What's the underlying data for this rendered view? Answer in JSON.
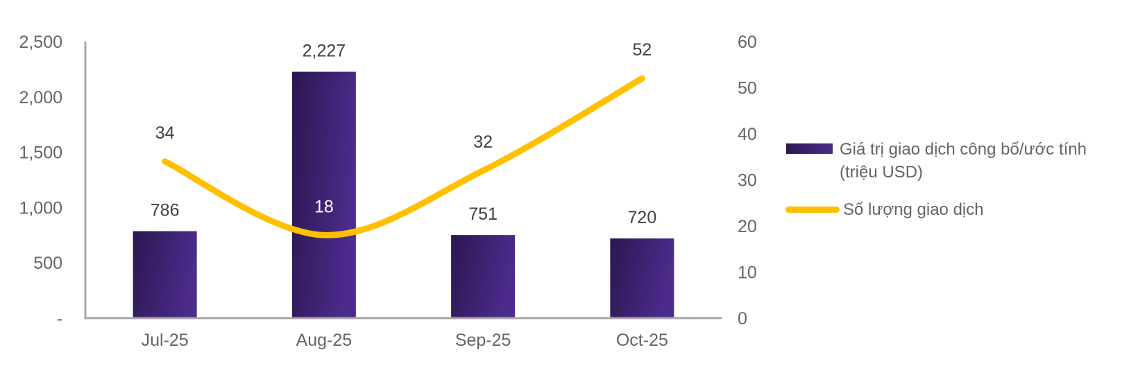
{
  "chart_data": {
    "type": "combo",
    "subtype": "bar+line",
    "categories": [
      "Jul-25",
      "Aug-25",
      "Sep-25",
      "Oct-25"
    ],
    "series": [
      {
        "name": "Giá trị giao dịch công bố/ước tính (triệu USD)",
        "legend_lines": [
          "Giá trị giao dịch công bố/ước tính",
          "(triệu USD)"
        ],
        "type": "bar",
        "axis": "left",
        "values": [
          786,
          2227,
          751,
          720
        ],
        "value_labels": [
          "786",
          "2,227",
          "751",
          "720"
        ],
        "color_start": "#2b1750",
        "color_end": "#4c2b8c"
      },
      {
        "name": "Số lượng giao dịch",
        "type": "line",
        "axis": "right",
        "values": [
          34,
          18,
          32,
          52
        ],
        "value_labels": [
          "34",
          "18",
          "32",
          "52"
        ],
        "label_colors": [
          "#404040",
          "#ffffff",
          "#404040",
          "#404040"
        ],
        "color": "#FFC000"
      }
    ],
    "left_axis": {
      "min": 0,
      "max": 2500,
      "tick_values": [
        0,
        500,
        1000,
        1500,
        2000,
        2500
      ],
      "tick_labels": [
        "-",
        "500",
        "1,000",
        "1,500",
        "2,000",
        "2,500"
      ]
    },
    "right_axis": {
      "min": 0,
      "max": 60,
      "tick_values": [
        0,
        10,
        20,
        30,
        40,
        50,
        60
      ],
      "tick_labels": [
        "0",
        "10",
        "20",
        "30",
        "40",
        "50",
        "60"
      ]
    },
    "grid": "off",
    "legend_position": "right",
    "axis_line_color": "#a6a6a6",
    "tick_text_color": "#646464",
    "data_label_color": "#404040"
  }
}
